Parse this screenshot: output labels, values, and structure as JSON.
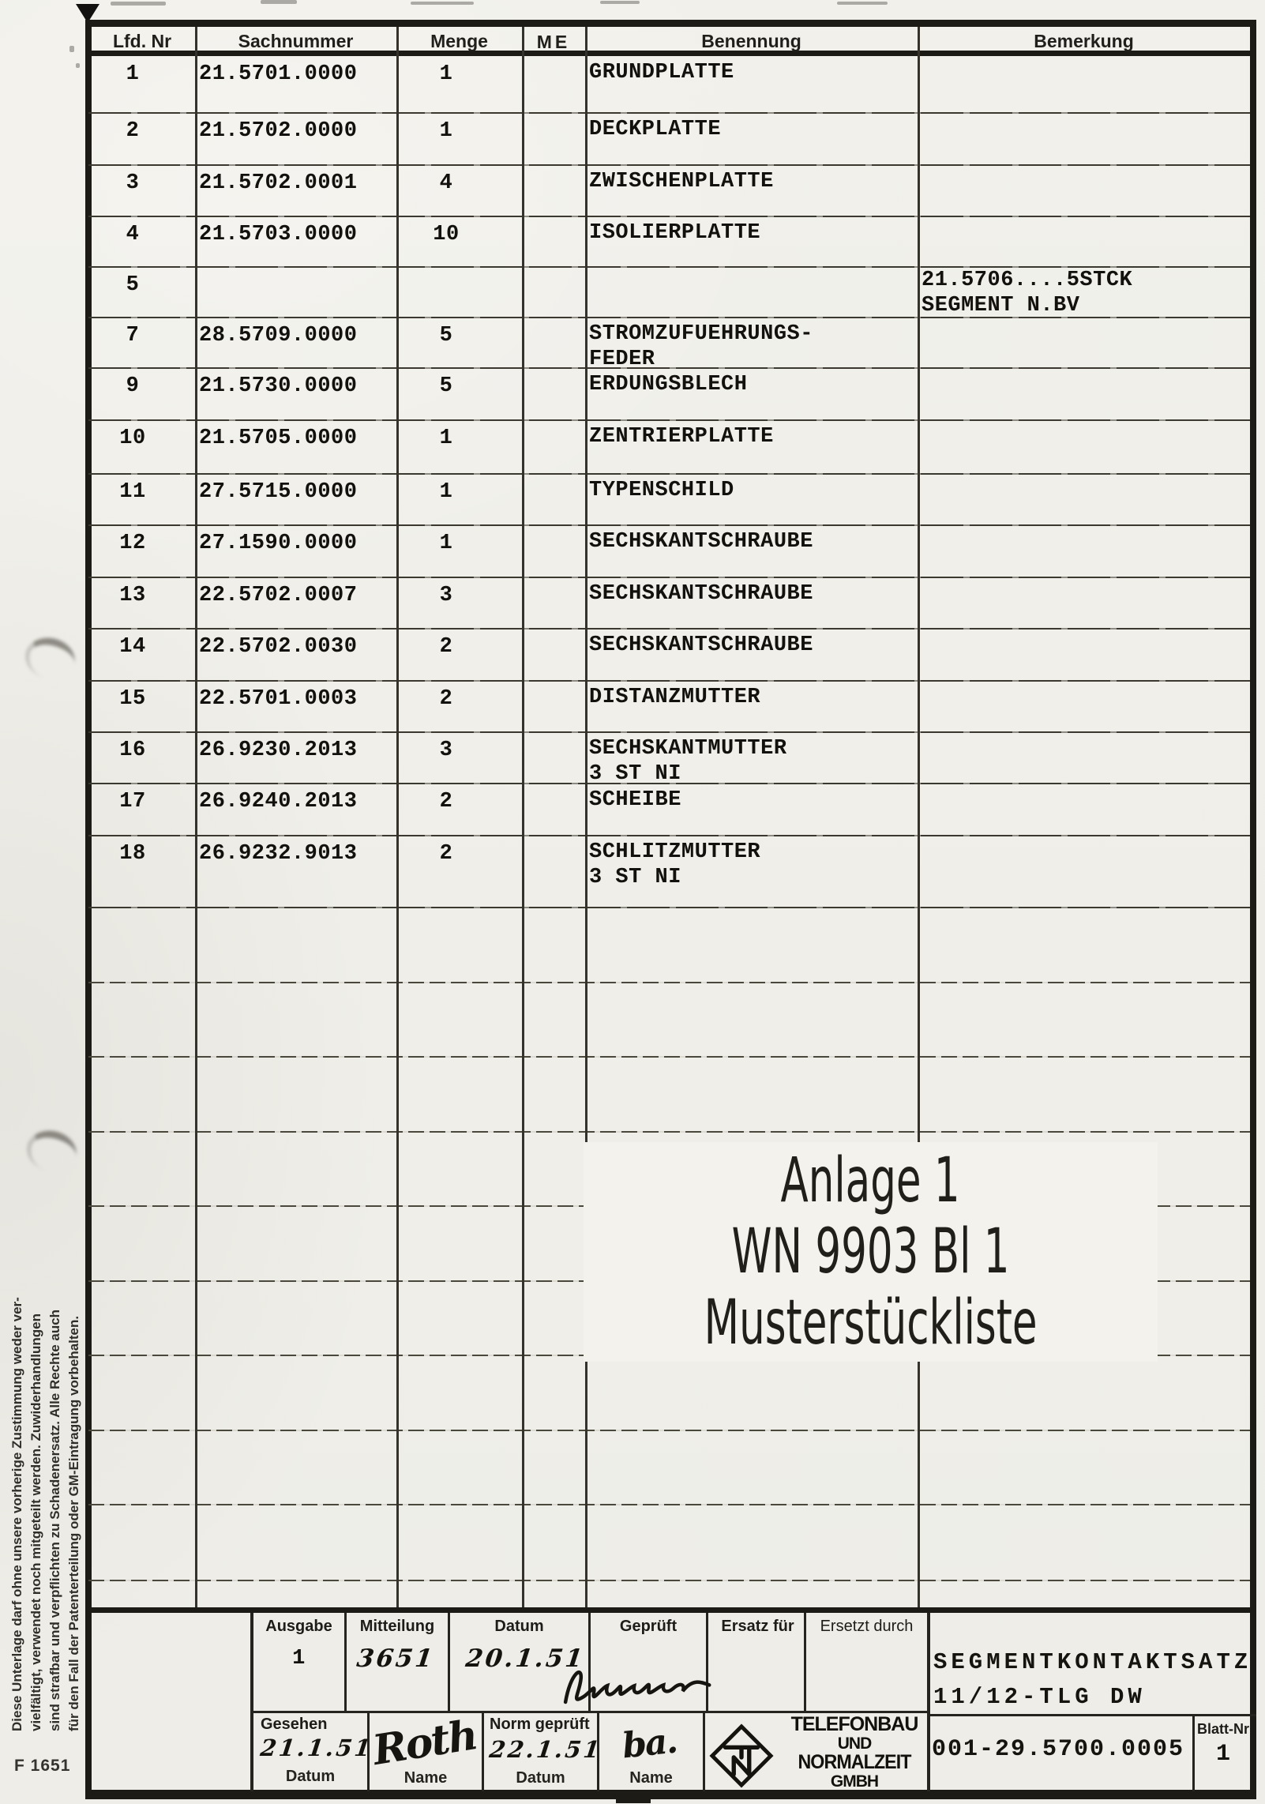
{
  "form_number": "F 1651",
  "table": {
    "headers": [
      "Lfd. Nr",
      "Sachnummer",
      "Menge",
      "ME",
      "Benennung",
      "Bemerkung"
    ],
    "rows": [
      {
        "nr": "1",
        "sachnummer": "21.5701.0000",
        "menge": "1",
        "me": "",
        "benennung": "GRUNDPLATTE",
        "bemerkung": ""
      },
      {
        "nr": "2",
        "sachnummer": "21.5702.0000",
        "menge": "1",
        "me": "",
        "benennung": "DECKPLATTE",
        "bemerkung": ""
      },
      {
        "nr": "3",
        "sachnummer": "21.5702.0001",
        "menge": "4",
        "me": "",
        "benennung": "ZWISCHENPLATTE",
        "bemerkung": ""
      },
      {
        "nr": "4",
        "sachnummer": "21.5703.0000",
        "menge": "10",
        "me": "",
        "benennung": "ISOLIERPLATTE",
        "bemerkung": ""
      },
      {
        "nr": "5",
        "sachnummer": "",
        "menge": "",
        "me": "",
        "benennung": "",
        "bemerkung": "21.5706....5STCK\nSEGMENT N.BV"
      },
      {
        "nr": "7",
        "sachnummer": "28.5709.0000",
        "menge": "5",
        "me": "",
        "benennung": "STROMZUFUEHRUNGS-\nFEDER",
        "bemerkung": ""
      },
      {
        "nr": "9",
        "sachnummer": "21.5730.0000",
        "menge": "5",
        "me": "",
        "benennung": "ERDUNGSBLECH",
        "bemerkung": ""
      },
      {
        "nr": "10",
        "sachnummer": "21.5705.0000",
        "menge": "1",
        "me": "",
        "benennung": "ZENTRIERPLATTE",
        "bemerkung": ""
      },
      {
        "nr": "11",
        "sachnummer": "27.5715.0000",
        "menge": "1",
        "me": "",
        "benennung": "TYPENSCHILD",
        "bemerkung": ""
      },
      {
        "nr": "12",
        "sachnummer": "27.1590.0000",
        "menge": "1",
        "me": "",
        "benennung": "SECHSKANTSCHRAUBE",
        "bemerkung": ""
      },
      {
        "nr": "13",
        "sachnummer": "22.5702.0007",
        "menge": "3",
        "me": "",
        "benennung": "SECHSKANTSCHRAUBE",
        "bemerkung": ""
      },
      {
        "nr": "14",
        "sachnummer": "22.5702.0030",
        "menge": "2",
        "me": "",
        "benennung": "SECHSKANTSCHRAUBE",
        "bemerkung": ""
      },
      {
        "nr": "15",
        "sachnummer": "22.5701.0003",
        "menge": "2",
        "me": "",
        "benennung": "DISTANZMUTTER",
        "bemerkung": ""
      },
      {
        "nr": "16",
        "sachnummer": "26.9230.2013",
        "menge": "3",
        "me": "",
        "benennung": "SECHSKANTMUTTER\n3 ST NI",
        "bemerkung": ""
      },
      {
        "nr": "17",
        "sachnummer": "26.9240.2013",
        "menge": "2",
        "me": "",
        "benennung": "SCHEIBE",
        "bemerkung": ""
      },
      {
        "nr": "18",
        "sachnummer": "26.9232.9013",
        "menge": "2",
        "me": "",
        "benennung": "SCHLITZMUTTER\n3 ST NI",
        "bemerkung": ""
      }
    ]
  },
  "stamp": {
    "line1": "Anlage 1",
    "line2": "WN 9903 Bl 1",
    "line3": "Musterstückliste"
  },
  "title_block": {
    "ausgabe_label": "Ausgabe",
    "ausgabe_value": "1",
    "mitteilung_label": "Mitteilung",
    "mitteilung_value": "3651",
    "datum_label": "Datum",
    "datum_value": "20.1.51",
    "geprueft_label": "Geprüft",
    "ersatz_label": "Ersatz für",
    "ersetzt_label": "Ersetzt durch",
    "gesehen_label": "Gesehen",
    "gesehen_datum": "21.1.51",
    "gesehen_name": "Roth",
    "datum_sub": "Datum",
    "name_sub": "Name",
    "norm_label": "Norm geprüft",
    "norm_datum": "22.1.51",
    "norm_name": "ba.",
    "company_lines": [
      "TELEFONBAU",
      "UND",
      "NORMALZEIT",
      "GMBH"
    ],
    "part_title_line1": "SEGMENTKONTAKTSATZ",
    "part_title_line2": "11/12-TLG DW",
    "doc_number": "001-29.5700.0005",
    "blatt_label": "Blatt-Nr",
    "blatt_value": "1"
  },
  "disclaimer": {
    "lines": [
      "Diese Unterlage darf ohne unsere vorherige Zustimmung weder ver-",
      "vielfältigt, verwendet noch mitgeteilt werden. Zuwiderhandlungen",
      "sind strafbar und verpflichten zu Schadenersatz. Alle Rechte auch",
      "für den Fall der Patenterteilung oder GM-Eintragung vorbehalten."
    ]
  }
}
